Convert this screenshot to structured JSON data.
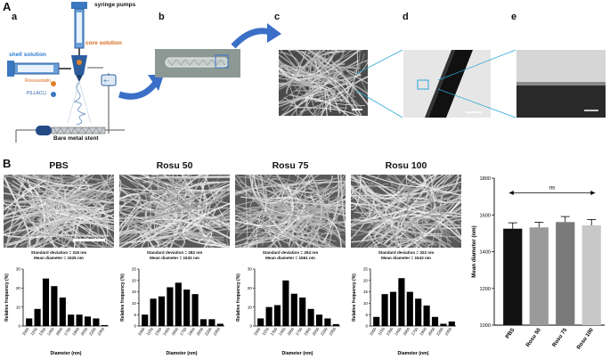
{
  "panel_A": {
    "label": "A",
    "sub": [
      "a",
      "b",
      "c",
      "d",
      "e"
    ],
    "labels": {
      "syringe": "syringe pumps",
      "core": "core solution",
      "shell": "shell solution",
      "drug": "Rosuvastatin",
      "polymer": "P(LLACL)",
      "stent": "Bare metal stent"
    }
  },
  "panel_B": {
    "label": "B",
    "hist_ylabel": "Relative frequency (%)",
    "hist_xlabel": "Diameter (nm)",
    "groups": [
      {
        "name": "PBS",
        "sd_text": "Standard deviation = 315 nm",
        "mean_text": "Mean diameter = 1525 nm"
      },
      {
        "name": "Rosu 50",
        "sd_text": "Standard deviation = 282 nm",
        "mean_text": "Mean diameter = 1532 nm"
      },
      {
        "name": "Rosu 75",
        "sd_text": "Standard deviation = 294 nm",
        "mean_text": "Mean diameter = 1561 nm"
      },
      {
        "name": "Rosu 100",
        "sd_text": "Standard deviation = 322 nm",
        "mean_text": "Mean diameter = 1543 nm"
      }
    ]
  },
  "chart_data": [
    {
      "type": "bar",
      "title": "PBS",
      "xlabel": "Diameter (nm)",
      "ylabel": "Relative frequency (%)",
      "categories": [
        "1000",
        "1150",
        "1300",
        "1450",
        "1600",
        "1750",
        "1900",
        "2050",
        "2200",
        "2350"
      ],
      "values": [
        4,
        9,
        25,
        21,
        15,
        6,
        6,
        5,
        4,
        0.5
      ],
      "ylim": [
        0,
        30
      ],
      "yticks": [
        0,
        10,
        20,
        30
      ]
    },
    {
      "type": "bar",
      "title": "Rosu 50",
      "xlabel": "Diameter (nm)",
      "ylabel": "Relative frequency (%)",
      "categories": [
        "1000",
        "1150",
        "1300",
        "1450",
        "1600",
        "1750",
        "1900",
        "2050",
        "2200",
        "2350"
      ],
      "values": [
        5,
        12,
        13,
        17,
        19,
        16,
        14,
        3,
        3,
        1
      ],
      "ylim": [
        0,
        25
      ],
      "yticks": [
        0,
        5,
        10,
        15,
        20,
        25
      ]
    },
    {
      "type": "bar",
      "title": "Rosu 75",
      "xlabel": "Diameter (nm)",
      "ylabel": "Relative frequency (%)",
      "categories": [
        "1000",
        "1150",
        "1300",
        "1450",
        "1600",
        "1750",
        "1900",
        "2050",
        "2200",
        "2350"
      ],
      "values": [
        4,
        10,
        11,
        24,
        17,
        15,
        9,
        6,
        4,
        1
      ],
      "ylim": [
        0,
        30
      ],
      "yticks": [
        0,
        10,
        20,
        30
      ]
    },
    {
      "type": "bar",
      "title": "Rosu 100",
      "xlabel": "Diameter (nm)",
      "ylabel": "Relative frequency (%)",
      "categories": [
        "1000",
        "1150",
        "1300",
        "1450",
        "1600",
        "1750",
        "1900",
        "2050",
        "2200",
        "2350"
      ],
      "values": [
        4,
        14,
        15,
        21,
        15,
        12,
        9,
        4,
        1,
        2
      ],
      "ylim": [
        0,
        25
      ],
      "yticks": [
        0,
        5,
        10,
        15,
        20,
        25
      ]
    },
    {
      "type": "bar",
      "ylabel": "Mean diameter (nm)",
      "categories": [
        "PBS",
        "Rosu 50",
        "Rosu 75",
        "Rosu 100"
      ],
      "values": [
        1525,
        1532,
        1561,
        1543
      ],
      "errors": [
        32,
        28,
        30,
        32
      ],
      "colors": [
        "#111111",
        "#9a9a9a",
        "#7a7a7a",
        "#c8c8c8"
      ],
      "ylim": [
        1000,
        1800
      ],
      "yticks": [
        1000,
        1200,
        1400,
        1600,
        1800
      ],
      "annotation": "ns"
    }
  ]
}
